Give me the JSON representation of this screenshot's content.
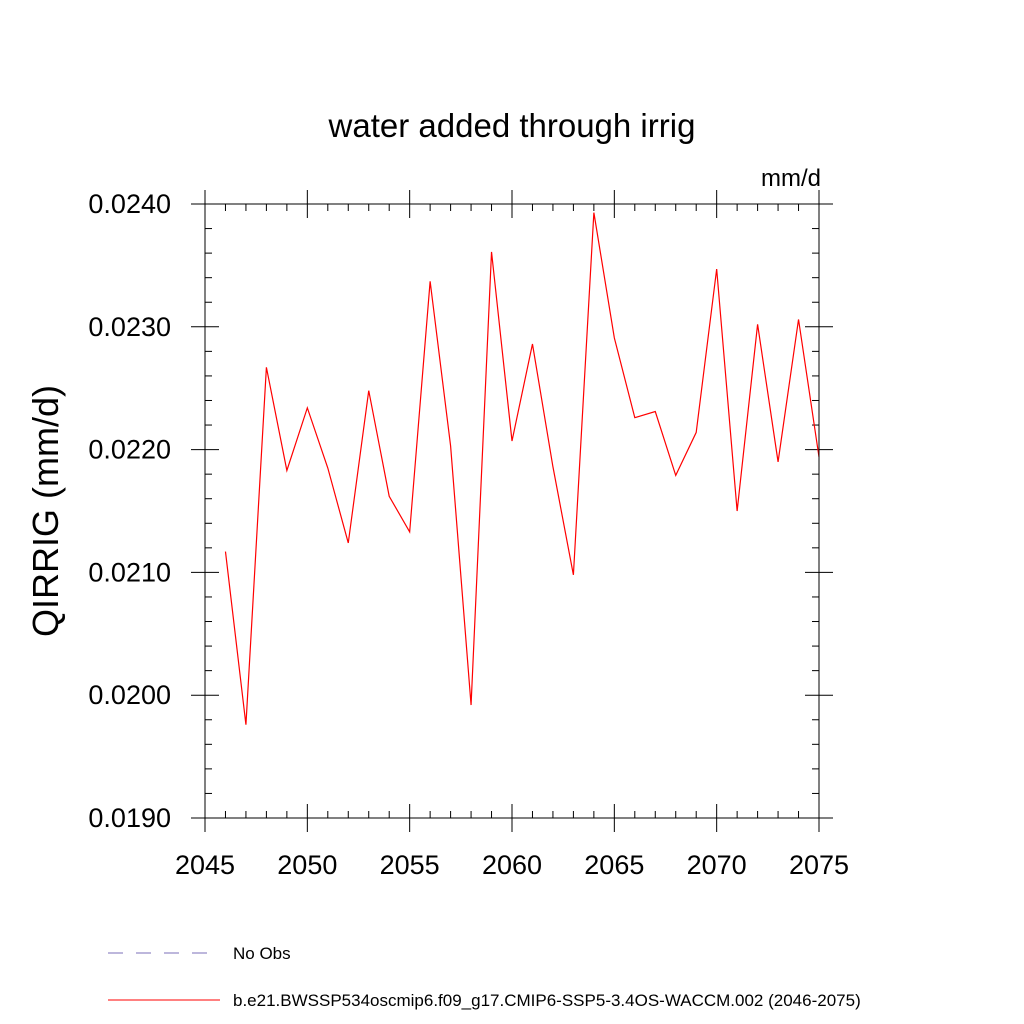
{
  "chart_data": {
    "type": "line",
    "title": "water added through irrig",
    "units_label": "mm/d",
    "ylabel": "QIRRIG  (mm/d)",
    "xlabel": "",
    "xlim": [
      2045,
      2075
    ],
    "ylim": [
      0.019,
      0.024
    ],
    "x_ticks": [
      2045,
      2050,
      2055,
      2060,
      2065,
      2070,
      2075
    ],
    "x_tick_labels": [
      "2045",
      "2050",
      "2055",
      "2060",
      "2065",
      "2070",
      "2075"
    ],
    "y_ticks": [
      0.019,
      0.02,
      0.021,
      0.022,
      0.023,
      0.024
    ],
    "y_tick_labels": [
      "0.0190",
      "0.0200",
      "0.0210",
      "0.0220",
      "0.0230",
      "0.0240"
    ],
    "x_minor_step": 1,
    "y_minor_step": 0.0002,
    "grid": false,
    "series": [
      {
        "name": "b.e21.BWSSP534oscmip6.f09_g17.CMIP6-SSP5-3.4OS-WACCM.002 (2046-2075)",
        "color": "#ff0000",
        "x": [
          2046,
          2047,
          2048,
          2049,
          2050,
          2051,
          2052,
          2053,
          2054,
          2055,
          2056,
          2057,
          2058,
          2059,
          2060,
          2061,
          2062,
          2063,
          2064,
          2065,
          2066,
          2067,
          2068,
          2069,
          2070,
          2071,
          2072,
          2073,
          2074,
          2075
        ],
        "values": [
          0.02117,
          0.01976,
          0.02267,
          0.02183,
          0.02234,
          0.02185,
          0.02124,
          0.02248,
          0.02162,
          0.02133,
          0.02337,
          0.02203,
          0.01992,
          0.02361,
          0.02207,
          0.02286,
          0.02186,
          0.02098,
          0.02393,
          0.02291,
          0.02226,
          0.02231,
          0.02179,
          0.02214,
          0.02347,
          0.0215,
          0.02302,
          0.0219,
          0.02306,
          0.02194
        ]
      }
    ],
    "legend": {
      "placement": "bottom-left",
      "entries": [
        {
          "label": "No Obs",
          "style": "dashed",
          "color": "#7b6fb8"
        },
        {
          "label": "b.e21.BWSSP534oscmip6.f09_g17.CMIP6-SSP5-3.4OS-WACCM.002 (2046-2075)",
          "style": "solid",
          "color": "#ff0000"
        }
      ]
    }
  }
}
